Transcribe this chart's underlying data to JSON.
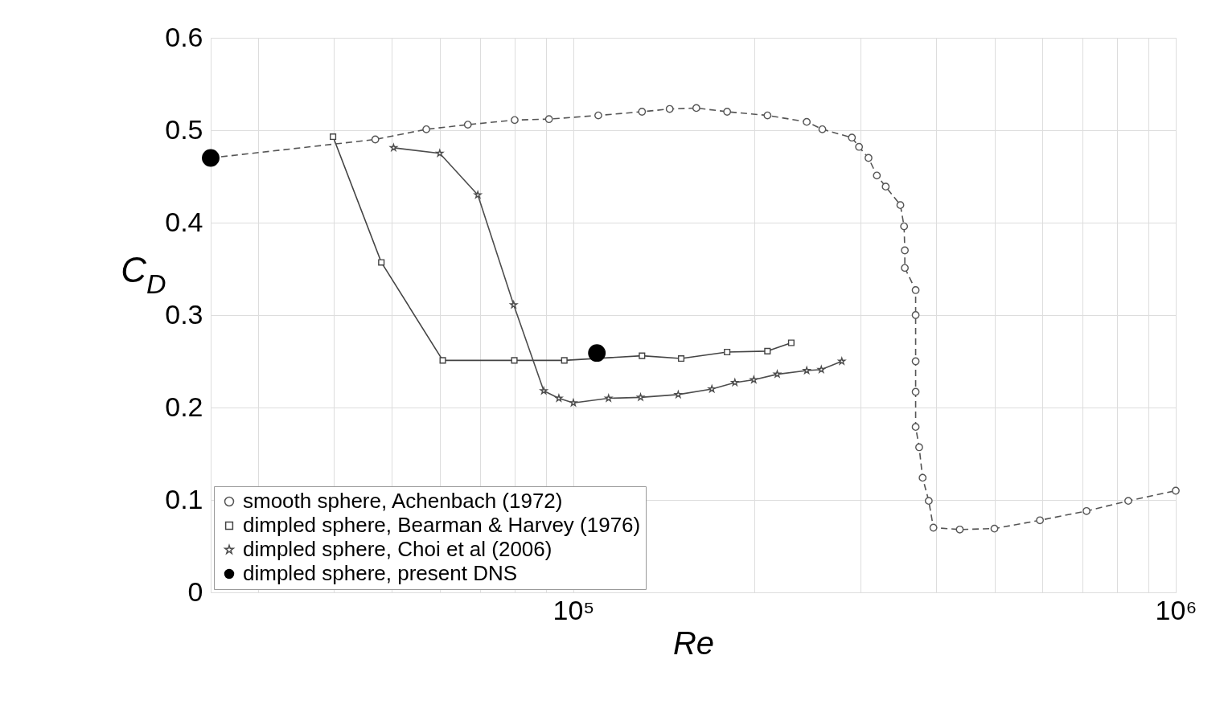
{
  "chart_data": {
    "type": "line",
    "xlabel": "Re",
    "ylabel": "C$_{D}$",
    "log": "x",
    "grid": true,
    "legend": "bottom left",
    "xlim": [
      25000,
      1000000
    ],
    "ylim": [
      0,
      0.6
    ],
    "xticks": [
      {
        "value": 30000,
        "label": null
      },
      {
        "value": 40000,
        "label": null
      },
      {
        "value": 50000,
        "label": null
      },
      {
        "value": 60000,
        "label": null
      },
      {
        "value": 70000,
        "label": null
      },
      {
        "value": 80000,
        "label": null
      },
      {
        "value": 90000,
        "label": null
      },
      {
        "value": 100000,
        "label": "10⁵"
      },
      {
        "value": 200000,
        "label": null
      },
      {
        "value": 300000,
        "label": null
      },
      {
        "value": 400000,
        "label": null
      },
      {
        "value": 500000,
        "label": null
      },
      {
        "value": 600000,
        "label": null
      },
      {
        "value": 700000,
        "label": null
      },
      {
        "value": 800000,
        "label": null
      },
      {
        "value": 900000,
        "label": null
      },
      {
        "value": 1000000,
        "label": "10⁶"
      }
    ],
    "yticks": [
      0,
      0.1,
      0.2,
      0.3,
      0.4,
      0.5,
      0.6
    ],
    "series": [
      {
        "name": "smooth sphere, Achenbach (1972)",
        "marker": "circle",
        "line_style": "dashed",
        "color": "#555555",
        "x": [
          25000,
          40000,
          46900,
          57000,
          66800,
          79900,
          91100,
          110000,
          130000,
          144500,
          160000,
          180000,
          210000,
          244000,
          259000,
          290000,
          298000,
          309000,
          319000,
          330000,
          349000,
          354000,
          355000,
          355000,
          370000,
          370000,
          370000,
          370000,
          370000,
          375000,
          380000,
          389000,
          396000,
          438000,
          500000,
          595000,
          711000,
          834000,
          1000000
        ],
        "values": [
          0.47,
          null,
          0.49,
          0.501,
          0.506,
          0.511,
          0.512,
          0.516,
          0.52,
          0.523,
          0.524,
          0.52,
          0.516,
          0.509,
          0.501,
          0.492,
          0.482,
          0.47,
          0.451,
          0.439,
          0.419,
          0.396,
          0.37,
          0.351,
          0.327,
          0.3,
          0.25,
          0.217,
          0.179,
          0.157,
          0.124,
          0.099,
          0.07,
          0.068,
          0.069,
          0.078,
          0.088,
          0.099,
          0.11
        ]
      },
      {
        "name": "dimpled sphere, Bearman & Harvey (1976)",
        "marker": "square",
        "line_style": "solid",
        "color": "#444444",
        "x": [
          39900,
          48000,
          60700,
          79800,
          96600,
          130000,
          151000,
          180000,
          210000,
          230000
        ],
        "values": [
          0.493,
          0.357,
          0.251,
          0.251,
          0.251,
          0.256,
          0.253,
          0.26,
          0.261,
          0.27
        ]
      },
      {
        "name": "dimpled sphere, Choi et al (2006)",
        "marker": "star",
        "line_style": "solid",
        "color": "#4d4d4d",
        "x": [
          50300,
          60000,
          69400,
          79600,
          89300,
          94600,
          100000,
          114400,
          129300,
          149300,
          169800,
          185400,
          199300,
          218000,
          244000,
          258000,
          279000
        ],
        "values": [
          0.481,
          0.475,
          0.43,
          0.311,
          0.218,
          0.21,
          0.205,
          0.21,
          0.211,
          0.214,
          0.22,
          0.227,
          0.23,
          0.236,
          0.24,
          0.241,
          0.25
        ]
      },
      {
        "name": "dimpled sphere, present DNS",
        "type": "scatter",
        "marker": "circle",
        "color": "#000000",
        "x": [
          25000,
          109400
        ],
        "values": [
          0.47,
          0.259
        ]
      }
    ]
  }
}
